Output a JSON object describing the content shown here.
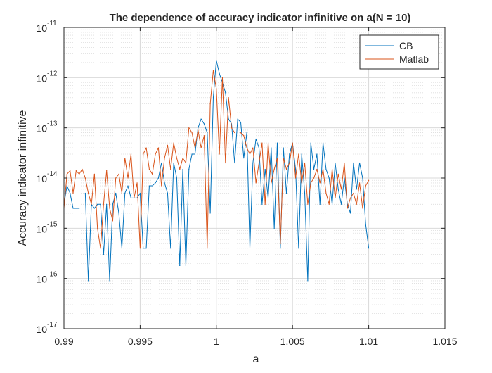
{
  "chart_data": {
    "type": "line",
    "title": "The dependence of accuracy indicator infinitive on a(N = 10)",
    "xlabel": "a",
    "ylabel": "Accuracy indicator infinitive",
    "xlim": [
      0.99,
      1.015
    ],
    "ylim": [
      1e-17,
      1e-11
    ],
    "yscale": "log",
    "grid": true,
    "minor_grid": true,
    "legend_position": "top-right",
    "xticks": [
      {
        "value": 0.99,
        "label": "0.99"
      },
      {
        "value": 0.995,
        "label": "0.995"
      },
      {
        "value": 1.0,
        "label": "1"
      },
      {
        "value": 1.005,
        "label": "1.005"
      },
      {
        "value": 1.01,
        "label": "1.01"
      },
      {
        "value": 1.015,
        "label": "1.015"
      }
    ],
    "yticks": [
      {
        "value": 1e-17,
        "base": "10",
        "exponent": "-17"
      },
      {
        "value": 1e-16,
        "base": "10",
        "exponent": "-16"
      },
      {
        "value": 1e-15,
        "base": "10",
        "exponent": "-15"
      },
      {
        "value": 1e-14,
        "base": "10",
        "exponent": "-14"
      },
      {
        "value": 1e-13,
        "base": "10",
        "exponent": "-13"
      },
      {
        "value": 1e-12,
        "base": "10",
        "exponent": "-12"
      },
      {
        "value": 1e-11,
        "base": "10",
        "exponent": "-11"
      }
    ],
    "series": [
      {
        "name": "CB",
        "color": "#0072BD",
        "points": [
          [
            0.99,
            3e-15
          ],
          [
            0.9902,
            7e-15
          ],
          [
            0.9904,
            5e-15
          ],
          [
            0.9906,
            2.5e-15
          ],
          [
            0.9908,
            2.5e-15
          ],
          [
            0.991,
            2.5e-15
          ],
          [
            0.9914,
            5e-15
          ],
          [
            0.9916,
            9e-17
          ],
          [
            0.9918,
            3e-15
          ],
          [
            0.992,
            2.5e-15
          ],
          [
            0.9922,
            3e-15
          ],
          [
            0.9924,
            3e-15
          ],
          [
            0.9926,
            3e-16
          ],
          [
            0.9928,
            3e-15
          ],
          [
            0.993,
            9e-17
          ],
          [
            0.9932,
            3e-15
          ],
          [
            0.9934,
            5e-15
          ],
          [
            0.9936,
            2e-15
          ],
          [
            0.9938,
            4e-16
          ],
          [
            0.994,
            5e-15
          ],
          [
            0.9942,
            7e-15
          ],
          [
            0.9944,
            4e-15
          ],
          [
            0.9946,
            4e-15
          ],
          [
            0.9948,
            4e-15
          ],
          [
            0.995,
            5e-15
          ],
          [
            0.9952,
            4e-16
          ],
          [
            0.9954,
            4e-16
          ],
          [
            0.9956,
            7e-15
          ],
          [
            0.9958,
            7e-15
          ],
          [
            0.996,
            8e-15
          ],
          [
            0.9962,
            1e-14
          ],
          [
            0.9964,
            2e-14
          ],
          [
            0.9966,
            8e-15
          ],
          [
            0.9968,
            5e-15
          ],
          [
            0.997,
            4e-16
          ],
          [
            0.9972,
            2e-14
          ],
          [
            0.9974,
            1e-14
          ],
          [
            0.9976,
            1.8e-16
          ],
          [
            0.9978,
            1.5e-14
          ],
          [
            0.998,
            1.8e-16
          ],
          [
            0.9982,
            1.5e-14
          ],
          [
            0.9984,
            3e-14
          ],
          [
            0.9986,
            3e-14
          ],
          [
            0.9988,
            1e-13
          ],
          [
            0.999,
            1.5e-13
          ],
          [
            0.9992,
            1.2e-13
          ],
          [
            0.9994,
            8e-14
          ],
          [
            0.9996,
            2e-15
          ],
          [
            0.9998,
            4e-13
          ],
          [
            1.0,
            2.2e-12
          ],
          [
            1.0002,
            1.2e-12
          ],
          [
            1.0004,
            8e-13
          ],
          [
            1.0006,
            5e-13
          ],
          [
            1.0008,
            1.5e-13
          ],
          [
            1.001,
            1.2e-13
          ],
          [
            1.0012,
            2e-14
          ],
          [
            1.0014,
            1.5e-13
          ],
          [
            1.0016,
            1.3e-13
          ],
          [
            1.0018,
            2.5e-14
          ],
          [
            1.002,
            8e-14
          ],
          [
            1.0022,
            4e-16
          ],
          [
            1.0024,
            2e-14
          ],
          [
            1.0026,
            6e-14
          ],
          [
            1.0028,
            4e-14
          ],
          [
            1.003,
            3e-15
          ],
          [
            1.0032,
            1.5e-14
          ],
          [
            1.0034,
            4e-15
          ],
          [
            1.0036,
            4e-14
          ],
          [
            1.0038,
            1e-15
          ],
          [
            1.004,
            5e-14
          ],
          [
            1.0042,
            4e-16
          ],
          [
            1.0044,
            4e-14
          ],
          [
            1.0046,
            5e-15
          ],
          [
            1.0048,
            3e-14
          ],
          [
            1.005,
            5e-14
          ],
          [
            1.0052,
            1.5e-14
          ],
          [
            1.0054,
            4e-16
          ],
          [
            1.0056,
            3e-14
          ],
          [
            1.0058,
            5e-15
          ],
          [
            1.006,
            9e-17
          ],
          [
            1.0062,
            5e-14
          ],
          [
            1.0064,
            1.5e-14
          ],
          [
            1.0066,
            3e-14
          ],
          [
            1.0068,
            3e-15
          ],
          [
            1.007,
            5e-14
          ],
          [
            1.0072,
            1.5e-14
          ],
          [
            1.0074,
            1e-14
          ],
          [
            1.0076,
            3e-15
          ],
          [
            1.0078,
            2e-14
          ],
          [
            1.008,
            6e-15
          ],
          [
            1.0082,
            3e-15
          ],
          [
            1.0084,
            1e-14
          ],
          [
            1.0086,
            3e-15
          ],
          [
            1.0088,
            2e-15
          ],
          [
            1.009,
            2e-14
          ],
          [
            1.0092,
            6e-15
          ],
          [
            1.0094,
            2e-14
          ],
          [
            1.0096,
            1e-14
          ],
          [
            1.0098,
            1.2e-15
          ],
          [
            1.01,
            4e-16
          ]
        ]
      },
      {
        "name": "Matlab",
        "color": "#D95319",
        "points": [
          [
            0.99,
            2.5e-15
          ],
          [
            0.9902,
            1.2e-14
          ],
          [
            0.9904,
            1.4e-14
          ],
          [
            0.9906,
            5e-15
          ],
          [
            0.9908,
            1.4e-14
          ],
          [
            0.991,
            1.2e-14
          ],
          [
            0.9912,
            1.5e-14
          ],
          [
            0.9914,
            1e-14
          ],
          [
            0.9916,
            5e-15
          ],
          [
            0.9918,
            3e-15
          ],
          [
            0.992,
            1.2e-14
          ],
          [
            0.9922,
            1e-15
          ],
          [
            0.9924,
            4e-16
          ],
          [
            0.9926,
            3e-15
          ],
          [
            0.9928,
            1.4e-14
          ],
          [
            0.993,
            2.5e-15
          ],
          [
            0.9932,
            1.4e-15
          ],
          [
            0.9934,
            1e-14
          ],
          [
            0.9936,
            1.2e-14
          ],
          [
            0.9938,
            5e-15
          ],
          [
            0.994,
            2.5e-14
          ],
          [
            0.9942,
            1e-14
          ],
          [
            0.9944,
            3e-14
          ],
          [
            0.9946,
            4e-15
          ],
          [
            0.9948,
            8e-15
          ],
          [
            0.995,
            4e-16
          ],
          [
            0.9952,
            3e-14
          ],
          [
            0.9954,
            4e-14
          ],
          [
            0.9956,
            1.5e-14
          ],
          [
            0.9958,
            1.2e-14
          ],
          [
            0.996,
            3e-14
          ],
          [
            0.9962,
            4e-14
          ],
          [
            0.9964,
            7e-15
          ],
          [
            0.9966,
            2.5e-14
          ],
          [
            0.9968,
            4.5e-14
          ],
          [
            0.997,
            1.5e-14
          ],
          [
            0.9972,
            5e-14
          ],
          [
            0.9974,
            2.5e-14
          ],
          [
            0.9976,
            1.5e-14
          ],
          [
            0.9978,
            2.5e-14
          ],
          [
            0.998,
            2e-14
          ],
          [
            0.9982,
            1e-13
          ],
          [
            0.9984,
            8e-14
          ],
          [
            0.9986,
            4e-14
          ],
          [
            0.9988,
            9e-14
          ],
          [
            0.999,
            4e-14
          ],
          [
            0.9992,
            7e-14
          ],
          [
            0.9994,
            4e-16
          ],
          [
            0.9996,
            3e-13
          ],
          [
            0.9998,
            1.4e-12
          ],
          [
            1.0,
            6e-13
          ],
          [
            1.0002,
            3e-14
          ],
          [
            1.0004,
            1e-12
          ],
          [
            1.0006,
            2e-14
          ],
          [
            1.0008,
            4e-13
          ],
          [
            1.001,
            1e-13
          ],
          [
            1.0012,
            8e-14
          ],
          [
            1.0016,
            8e-14
          ],
          [
            1.0018,
            7e-14
          ],
          [
            1.002,
            4e-14
          ],
          [
            1.0022,
            3e-14
          ],
          [
            1.0024,
            4e-14
          ],
          [
            1.0026,
            8e-15
          ],
          [
            1.0028,
            2e-14
          ],
          [
            1.003,
            5e-14
          ],
          [
            1.0032,
            3e-15
          ],
          [
            1.0034,
            5e-14
          ],
          [
            1.0036,
            8e-15
          ],
          [
            1.0038,
            1.5e-14
          ],
          [
            1.004,
            2.5e-14
          ],
          [
            1.0042,
            5e-16
          ],
          [
            1.0044,
            2.5e-14
          ],
          [
            1.0046,
            1.5e-14
          ],
          [
            1.0048,
            2e-14
          ],
          [
            1.005,
            5e-14
          ],
          [
            1.0052,
            1e-14
          ],
          [
            1.0054,
            3e-14
          ],
          [
            1.0056,
            8e-15
          ],
          [
            1.0058,
            2e-14
          ],
          [
            1.006,
            3e-15
          ],
          [
            1.0062,
            8e-15
          ],
          [
            1.0064,
            1e-14
          ],
          [
            1.0066,
            1.5e-14
          ],
          [
            1.0068,
            8e-15
          ],
          [
            1.007,
            1.5e-14
          ],
          [
            1.0072,
            5e-15
          ],
          [
            1.0074,
            3e-15
          ],
          [
            1.0076,
            1.5e-14
          ],
          [
            1.0078,
            4e-15
          ],
          [
            1.008,
            1.2e-14
          ],
          [
            1.0082,
            6e-15
          ],
          [
            1.0084,
            2e-14
          ],
          [
            1.0086,
            2.5e-15
          ],
          [
            1.0088,
            4e-15
          ],
          [
            1.009,
            5e-15
          ],
          [
            1.0092,
            3e-15
          ],
          [
            1.0094,
            8e-15
          ],
          [
            1.0096,
            2.5e-15
          ],
          [
            1.0098,
            7e-15
          ],
          [
            1.01,
            9e-15
          ]
        ]
      }
    ]
  }
}
